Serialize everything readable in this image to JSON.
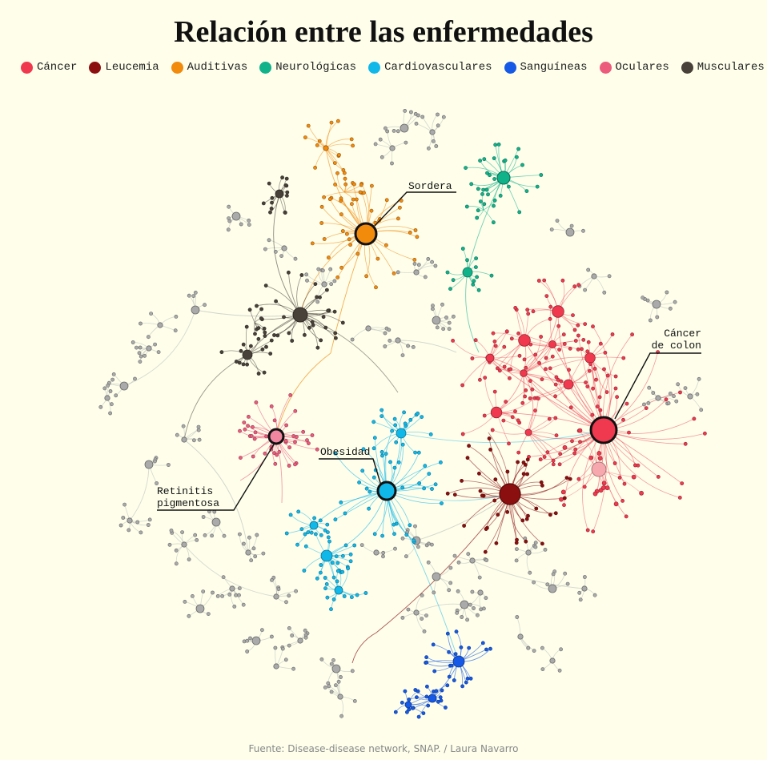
{
  "title": "Relación entre las enfermedades",
  "legend": [
    {
      "label": "Cáncer",
      "color": "#f0394e"
    },
    {
      "label": "Leucemia",
      "color": "#8c0f0f"
    },
    {
      "label": "Auditivas",
      "color": "#f28a0c"
    },
    {
      "label": "Neurológicas",
      "color": "#10b28a"
    },
    {
      "label": "Cardiovasculares",
      "color": "#10b8ea"
    },
    {
      "label": "Sanguíneas",
      "color": "#1559e6"
    },
    {
      "label": "Oculares",
      "color": "#ec5b7c"
    },
    {
      "label": "Musculares",
      "color": "#474139"
    }
  ],
  "other_color": "#aaaaaa",
  "annotations": [
    {
      "lines": [
        "Sordera"
      ],
      "category": "Auditivas"
    },
    {
      "lines": [
        "Cáncer",
        "de colon"
      ],
      "category": "Cáncer"
    },
    {
      "lines": [
        "Obesidad"
      ],
      "category": "Cardiovasculares"
    },
    {
      "lines": [
        "Retinitis",
        "pigmentosa"
      ],
      "category": "Oculares"
    }
  ],
  "source": "Fuente: Disease-disease network, SNAP. / Laura Navarro"
}
